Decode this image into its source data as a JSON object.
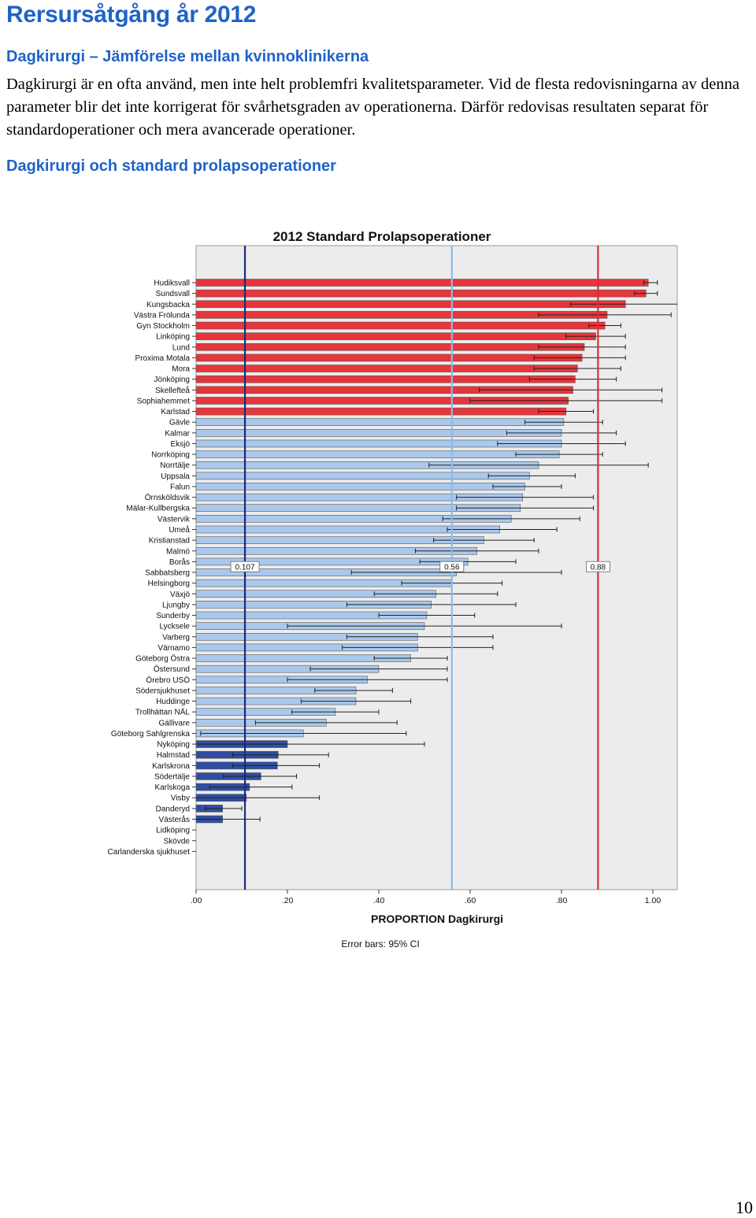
{
  "page": {
    "title": "Rersursåtgång år 2012",
    "subtitle": "Dagkirurgi – Jämförelse mellan kvinnoklinikerna",
    "paragraph": "Dagkirurgi är en ofta använd, men inte helt problemfri kvalitetsparameter. Vid de flesta redovisningarna av denna parameter blir det inte korrigerat för svårhetsgraden av operationerna. Därför redovisas resultaten separat för standardoperationer och mera avancerade operationer.",
    "section_title": "Dagkirurgi och standard prolapsoperationer",
    "page_number": "10"
  },
  "colors": {
    "heading": "#1f63c8",
    "bar_high": "#e8353a",
    "bar_mid": "#a9c8ec",
    "bar_low": "#2f4ea3",
    "line_low": "#1a2b78",
    "line_mid": "#8fb9ea",
    "line_high": "#d9303a",
    "plot_bg": "#ececec"
  },
  "chart_data": {
    "type": "bar",
    "orientation": "horizontal",
    "title": "2012   Standard Prolapsoperationer",
    "xlabel": "PROPORTION Dagkirurgi",
    "xlim": [
      0,
      1
    ],
    "xticks": [
      ".00",
      ".20",
      ".40",
      ".60",
      ".80",
      "1.00"
    ],
    "footnote": "Error bars: 95% CI",
    "grid": false,
    "reference_lines": [
      {
        "value": 0.107,
        "label": "0.107",
        "color_key": "line_low"
      },
      {
        "value": 0.56,
        "label": "0.56",
        "color_key": "line_mid"
      },
      {
        "value": 0.88,
        "label": "0.88",
        "color_key": "line_high"
      }
    ],
    "series": [
      {
        "category": "Hudiksvall",
        "value": 0.99,
        "ci": [
          0.98,
          1.01
        ]
      },
      {
        "category": "Sundsvall",
        "value": 0.985,
        "ci": [
          0.96,
          1.01
        ]
      },
      {
        "category": "Kungsbacka",
        "value": 0.94,
        "ci": [
          0.82,
          1.06
        ]
      },
      {
        "category": "Västra Frölunda",
        "value": 0.9,
        "ci": [
          0.75,
          1.04
        ]
      },
      {
        "category": "Gyn Stockholm",
        "value": 0.895,
        "ci": [
          0.86,
          0.93
        ]
      },
      {
        "category": "Linköping",
        "value": 0.875,
        "ci": [
          0.81,
          0.94
        ]
      },
      {
        "category": "Lund",
        "value": 0.85,
        "ci": [
          0.75,
          0.94
        ]
      },
      {
        "category": "Proxima Motala",
        "value": 0.845,
        "ci": [
          0.74,
          0.94
        ]
      },
      {
        "category": "Mora",
        "value": 0.835,
        "ci": [
          0.74,
          0.93
        ]
      },
      {
        "category": "Jönköping",
        "value": 0.83,
        "ci": [
          0.73,
          0.92
        ]
      },
      {
        "category": "Skellefteå",
        "value": 0.825,
        "ci": [
          0.62,
          1.02
        ]
      },
      {
        "category": "Sophiahemmet",
        "value": 0.815,
        "ci": [
          0.6,
          1.02
        ]
      },
      {
        "category": "Karlstad",
        "value": 0.81,
        "ci": [
          0.75,
          0.87
        ]
      },
      {
        "category": "Gävle",
        "value": 0.805,
        "ci": [
          0.72,
          0.89
        ]
      },
      {
        "category": "Kalmar",
        "value": 0.8,
        "ci": [
          0.68,
          0.92
        ]
      },
      {
        "category": "Eksjö",
        "value": 0.8,
        "ci": [
          0.66,
          0.94
        ]
      },
      {
        "category": "Norrköping",
        "value": 0.795,
        "ci": [
          0.7,
          0.89
        ]
      },
      {
        "category": "Norrtälje",
        "value": 0.75,
        "ci": [
          0.51,
          0.99
        ]
      },
      {
        "category": "Uppsala",
        "value": 0.73,
        "ci": [
          0.64,
          0.83
        ]
      },
      {
        "category": "Falun",
        "value": 0.72,
        "ci": [
          0.65,
          0.8
        ]
      },
      {
        "category": "Örnsköldsvik",
        "value": 0.715,
        "ci": [
          0.57,
          0.87
        ]
      },
      {
        "category": "Mälar-Kullbergska",
        "value": 0.71,
        "ci": [
          0.57,
          0.87
        ]
      },
      {
        "category": "Västervik",
        "value": 0.69,
        "ci": [
          0.54,
          0.84
        ]
      },
      {
        "category": "Umeå",
        "value": 0.665,
        "ci": [
          0.55,
          0.79
        ]
      },
      {
        "category": "Kristianstad",
        "value": 0.63,
        "ci": [
          0.52,
          0.74
        ]
      },
      {
        "category": "Malmö",
        "value": 0.615,
        "ci": [
          0.48,
          0.75
        ]
      },
      {
        "category": "Borås",
        "value": 0.595,
        "ci": [
          0.49,
          0.7
        ]
      },
      {
        "category": "Sabbatsberg",
        "value": 0.57,
        "ci": [
          0.34,
          0.8
        ]
      },
      {
        "category": "Helsingborg",
        "value": 0.56,
        "ci": [
          0.45,
          0.67
        ]
      },
      {
        "category": "Växjö",
        "value": 0.525,
        "ci": [
          0.39,
          0.66
        ]
      },
      {
        "category": "Ljungby",
        "value": 0.515,
        "ci": [
          0.33,
          0.7
        ]
      },
      {
        "category": "Sunderby",
        "value": 0.505,
        "ci": [
          0.4,
          0.61
        ]
      },
      {
        "category": "Lycksele",
        "value": 0.5,
        "ci": [
          0.2,
          0.8
        ]
      },
      {
        "category": "Varberg",
        "value": 0.485,
        "ci": [
          0.33,
          0.65
        ]
      },
      {
        "category": "Värnamo",
        "value": 0.485,
        "ci": [
          0.32,
          0.65
        ]
      },
      {
        "category": "Göteborg Östra",
        "value": 0.47,
        "ci": [
          0.39,
          0.55
        ]
      },
      {
        "category": "Östersund",
        "value": 0.4,
        "ci": [
          0.25,
          0.55
        ]
      },
      {
        "category": "Örebro USÖ",
        "value": 0.375,
        "ci": [
          0.2,
          0.55
        ]
      },
      {
        "category": "Södersjukhuset",
        "value": 0.35,
        "ci": [
          0.26,
          0.43
        ]
      },
      {
        "category": "Huddinge",
        "value": 0.35,
        "ci": [
          0.23,
          0.47
        ]
      },
      {
        "category": "Trollhättan NÄL",
        "value": 0.305,
        "ci": [
          0.21,
          0.4
        ]
      },
      {
        "category": "Gällivare",
        "value": 0.285,
        "ci": [
          0.13,
          0.44
        ]
      },
      {
        "category": "Göteborg Sahlgrenska",
        "value": 0.235,
        "ci": [
          0.01,
          0.46
        ]
      },
      {
        "category": "Nyköping",
        "value": 0.2,
        "ci": [
          -0.1,
          0.5
        ]
      },
      {
        "category": "Halmstad",
        "value": 0.18,
        "ci": [
          0.08,
          0.29
        ]
      },
      {
        "category": "Karlskrona",
        "value": 0.178,
        "ci": [
          0.08,
          0.27
        ]
      },
      {
        "category": "Södertälje",
        "value": 0.142,
        "ci": [
          0.06,
          0.22
        ]
      },
      {
        "category": "Karlskoga",
        "value": 0.117,
        "ci": [
          0.03,
          0.21
        ]
      },
      {
        "category": "Visby",
        "value": 0.11,
        "ci": [
          -0.05,
          0.27
        ]
      },
      {
        "category": "Danderyd",
        "value": 0.058,
        "ci": [
          0.02,
          0.1
        ]
      },
      {
        "category": "Västerås",
        "value": 0.058,
        "ci": [
          -0.02,
          0.14
        ]
      },
      {
        "category": "Lidköping",
        "value": 0,
        "ci": null
      },
      {
        "category": "Skövde",
        "value": 0,
        "ci": null
      },
      {
        "category": "Carlanderska sjukhuset",
        "value": 0,
        "ci": null
      }
    ]
  }
}
